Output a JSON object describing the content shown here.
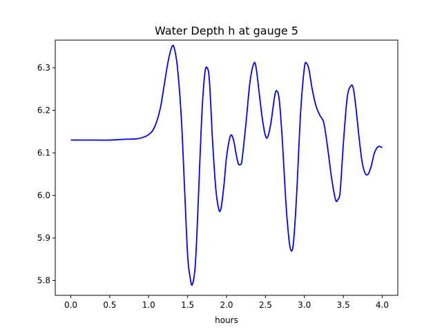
{
  "chart_data": {
    "type": "line",
    "title": "Water Depth h at gauge 5",
    "xlabel": "hours",
    "ylabel": "",
    "xlim": [
      -0.2,
      4.2
    ],
    "ylim": [
      5.765,
      6.365
    ],
    "xticks": [
      "0.0",
      "0.5",
      "1.0",
      "1.5",
      "2.0",
      "2.5",
      "3.0",
      "3.5",
      "4.0"
    ],
    "yticks": [
      "5.8",
      "5.9",
      "6.0",
      "6.1",
      "6.2",
      "6.3"
    ],
    "grid": false,
    "legend": "none",
    "series": [
      {
        "color": "#0000ff",
        "x": [
          0.0,
          0.3,
          0.5,
          0.7,
          0.85,
          0.95,
          1.0,
          1.05,
          1.1,
          1.15,
          1.2,
          1.25,
          1.3,
          1.33,
          1.37,
          1.42,
          1.46,
          1.5,
          1.53,
          1.56,
          1.6,
          1.64,
          1.68,
          1.72,
          1.75,
          1.78,
          1.82,
          1.86,
          1.9,
          1.93,
          1.97,
          2.0,
          2.05,
          2.09,
          2.12,
          2.15,
          2.18,
          2.2,
          2.25,
          2.3,
          2.35,
          2.38,
          2.42,
          2.46,
          2.5,
          2.53,
          2.57,
          2.62,
          2.65,
          2.68,
          2.72,
          2.76,
          2.8,
          2.83,
          2.86,
          2.9,
          2.95,
          3.0,
          3.03,
          3.06,
          3.1,
          3.15,
          3.2,
          3.25,
          3.3,
          3.35,
          3.4,
          3.43,
          3.46,
          3.5,
          3.55,
          3.6,
          3.63,
          3.66,
          3.7,
          3.74,
          3.78,
          3.82,
          3.86,
          3.9,
          3.95,
          4.0
        ],
        "y": [
          6.13,
          6.13,
          6.13,
          6.132,
          6.133,
          6.138,
          6.143,
          6.152,
          6.172,
          6.205,
          6.26,
          6.315,
          6.35,
          6.345,
          6.3,
          6.18,
          6.02,
          5.86,
          5.81,
          5.79,
          5.84,
          6.0,
          6.18,
          6.285,
          6.3,
          6.27,
          6.13,
          6.02,
          5.968,
          5.97,
          6.03,
          6.09,
          6.14,
          6.13,
          6.1,
          6.075,
          6.073,
          6.085,
          6.17,
          6.265,
          6.31,
          6.3,
          6.24,
          6.18,
          6.14,
          6.138,
          6.17,
          6.235,
          6.245,
          6.22,
          6.12,
          5.99,
          5.9,
          5.87,
          5.89,
          6.0,
          6.19,
          6.3,
          6.31,
          6.295,
          6.25,
          6.21,
          6.188,
          6.17,
          6.11,
          6.04,
          5.99,
          5.99,
          6.01,
          6.12,
          6.23,
          6.258,
          6.25,
          6.21,
          6.14,
          6.08,
          6.052,
          6.05,
          6.07,
          6.1,
          6.115,
          6.112
        ]
      }
    ]
  }
}
